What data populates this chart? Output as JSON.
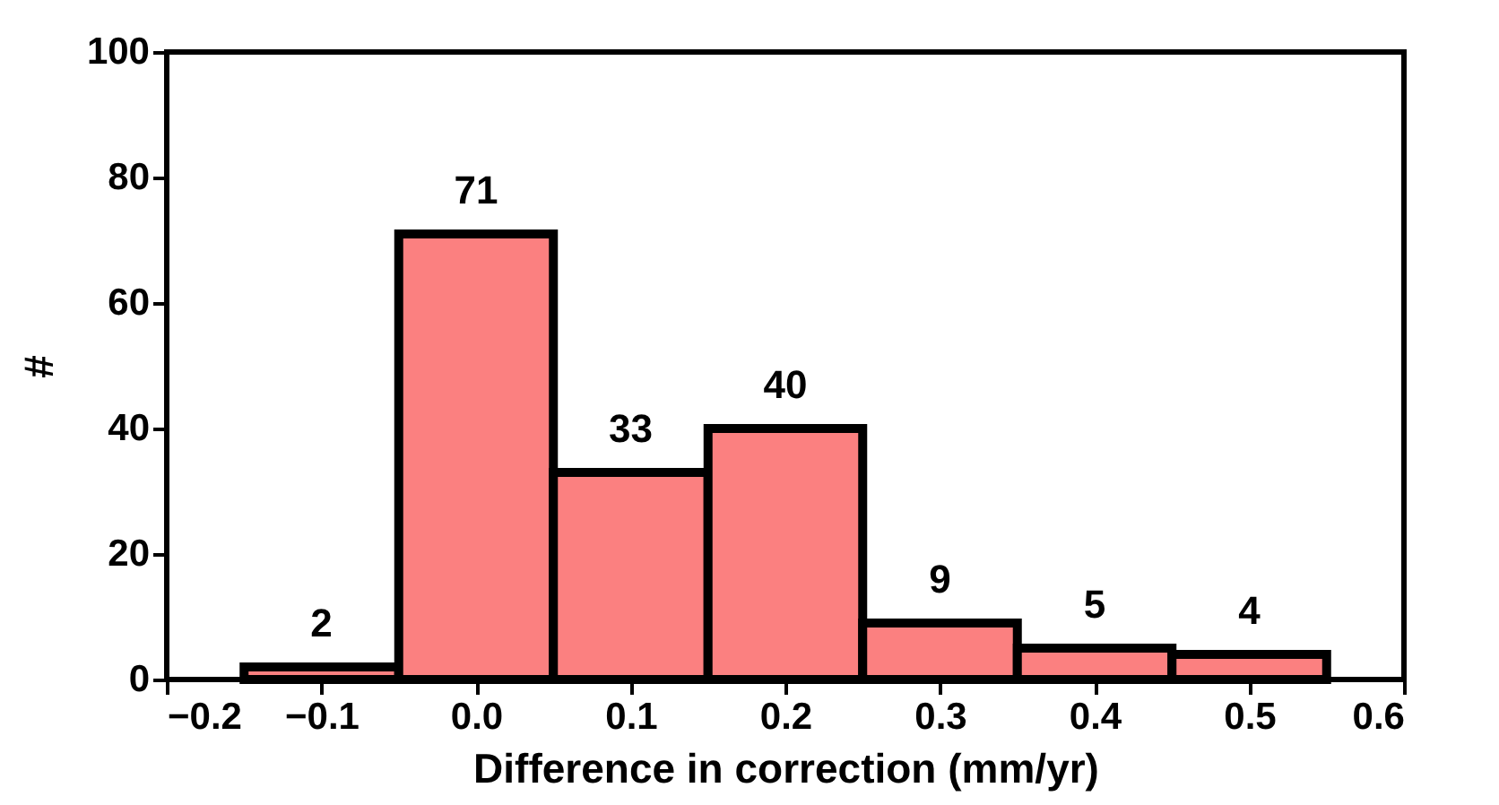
{
  "chart_data": {
    "type": "histogram",
    "xlabel": "Difference in correction (mm/yr)",
    "ylabel": "#",
    "bins": [
      -0.15,
      -0.05,
      0.05,
      0.15,
      0.25,
      0.35,
      0.45,
      0.55
    ],
    "values": [
      2,
      71,
      33,
      40,
      9,
      5,
      4
    ],
    "color": "#fb8080",
    "data_labels": true,
    "xlim": [
      -0.2,
      0.6
    ],
    "xticks": [
      {
        "value": -0.2,
        "label": "−0.2"
      },
      {
        "value": -0.1,
        "label": "−0.1"
      },
      {
        "value": 0,
        "label": "0.0"
      },
      {
        "value": 0.1,
        "label": "0.1"
      },
      {
        "value": 0.2,
        "label": "0.2"
      },
      {
        "value": 0.3,
        "label": "0.3"
      },
      {
        "value": 0.4,
        "label": "0.4"
      },
      {
        "value": 0.5,
        "label": "0.5"
      },
      {
        "value": 0.6,
        "label": "0.6"
      }
    ],
    "ylim": [
      0,
      100
    ],
    "yticks": [
      0,
      20,
      40,
      60,
      80,
      100
    ],
    "grid": false
  }
}
